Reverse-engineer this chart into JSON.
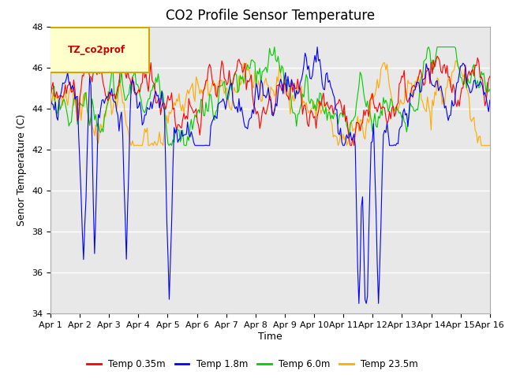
{
  "title": "CO2 Profile Sensor Temperature",
  "ylabel": "Senor Temperature (C)",
  "xlabel": "Time",
  "legend_label": "TZ_co2prof",
  "ylim": [
    34,
    48
  ],
  "xlim": [
    0,
    360
  ],
  "tick_labels": [
    "Apr 1",
    "Apr 2",
    "Apr 3",
    "Apr 4",
    "Apr 5",
    "Apr 6",
    "Apr 7",
    "Apr 8",
    "Apr 9",
    "Apr 10",
    "Apr 11",
    "Apr 12",
    "Apr 13",
    "Apr 14",
    "Apr 15",
    "Apr 16"
  ],
  "yticks": [
    34,
    36,
    38,
    40,
    42,
    44,
    46,
    48
  ],
  "series_colors": [
    "#ff0000",
    "#0000ff",
    "#00cc00",
    "#ffaa00"
  ],
  "series_labels": [
    "Temp 0.35m",
    "Temp 1.8m",
    "Temp 6.0m",
    "Temp 23.5m"
  ],
  "line_width": 0.8,
  "background_color": "#ffffff",
  "plot_bg_color": "#e8e8e8",
  "grid_color": "#ffffff",
  "legend_box_color": "#ffffcc",
  "legend_text_color": "#cc0000",
  "legend_edge_color": "#ccaa00",
  "title_fontsize": 12,
  "axis_fontsize": 9,
  "tick_fontsize": 8
}
